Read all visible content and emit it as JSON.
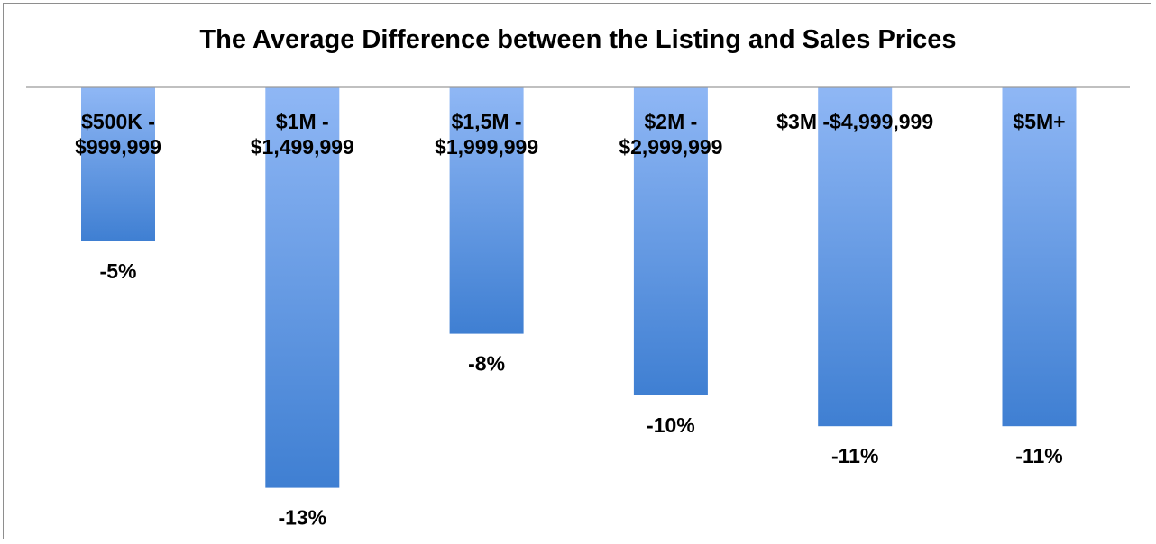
{
  "chart_data": {
    "type": "bar",
    "title": "The Average Difference between the Listing and Sales Prices",
    "categories": [
      "$500K - $999,999",
      "$1M - $1,499,999",
      "$1,5M - $1,999,999",
      "$2M - $2,999,999",
      "$3M -$4,999,999",
      "$5M+"
    ],
    "category_label_lines": [
      [
        "$500K -",
        "$999,999"
      ],
      [
        "$1M -",
        "$1,499,999"
      ],
      [
        "$1,5M -",
        "$1,999,999"
      ],
      [
        "$2M -",
        "$2,999,999"
      ],
      [
        "$3M -$4,999,999"
      ],
      [
        "$5M+"
      ]
    ],
    "values": [
      -5,
      -13,
      -8,
      -10,
      -11,
      -11
    ],
    "value_labels": [
      "-5%",
      "-13%",
      "-8%",
      "-10%",
      "-11%",
      "-11%"
    ],
    "ylim": [
      -13,
      0
    ],
    "xlabel": "",
    "ylabel": "",
    "grid": false,
    "legend": "none",
    "colors": {
      "bar_top": "#8fb7f5",
      "bar_bottom": "#3f7fd2",
      "axis": "#9a9a9a",
      "border": "#8e8e8e"
    }
  }
}
